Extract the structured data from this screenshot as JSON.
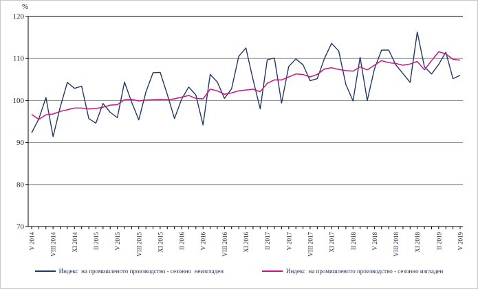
{
  "figure": {
    "y_unit_label": "%"
  },
  "chart_data": {
    "type": "line",
    "title": "",
    "xlabel": "",
    "ylabel": "%",
    "ylim": [
      70,
      120
    ],
    "yticks": [
      120,
      110,
      100,
      90,
      80,
      70
    ],
    "grid": "horizontal",
    "legend_position": "bottom",
    "months_total": 61,
    "tick_every": 3,
    "x_tick_labels": [
      "V 2014",
      "VIII 2014",
      "XI 2014",
      "II 2015",
      "V 2015",
      "VIII 2015",
      "XI 2015",
      "II 2016",
      "V 2016",
      "VIII 2016",
      "XI 2016",
      "II 2017",
      "V 2017",
      "VIII 2017",
      "XI 2017",
      "II 2018",
      "V 2018",
      "VIII 2018",
      "XI 2018",
      "II 2019",
      "V 2019"
    ],
    "series": [
      {
        "name": "Индекс  на промишленото производство - сезонно  неизгладен",
        "color": "#1f3864",
        "width": 1.4,
        "values": [
          92.3,
          95.6,
          100.7,
          91.4,
          98.4,
          104.3,
          102.9,
          103.4,
          95.7,
          94.6,
          99.3,
          97.2,
          95.9,
          104.4,
          99.6,
          95.4,
          102.0,
          106.6,
          106.7,
          101.4,
          95.7,
          100.3,
          103.2,
          101.3,
          94.2,
          106.2,
          104.4,
          100.5,
          102.8,
          110.5,
          112.5,
          105.0,
          98.0,
          109.7,
          110.1,
          99.4,
          108.1,
          109.9,
          108.5,
          104.7,
          105.2,
          110.0,
          113.6,
          111.8,
          103.8,
          99.9,
          110.3,
          100.0,
          107.5,
          112.0,
          112.0,
          108.5,
          106.4,
          104.3,
          116.3,
          108.0,
          106.3,
          108.6,
          111.5,
          105.2,
          106.0
        ]
      },
      {
        "name": "Индекс  на промишленото производство - сезонно изгладен",
        "color": "#cb1580",
        "width": 1.5,
        "values": [
          96.7,
          95.5,
          96.6,
          96.8,
          97.4,
          97.8,
          98.2,
          98.2,
          98.0,
          98.1,
          98.4,
          98.9,
          99.0,
          100.2,
          100.3,
          99.9,
          100.1,
          100.2,
          100.3,
          100.2,
          100.4,
          100.8,
          101.2,
          100.5,
          100.4,
          102.7,
          102.3,
          101.5,
          101.8,
          102.3,
          102.5,
          102.7,
          102.1,
          104.1,
          104.9,
          104.9,
          105.6,
          106.3,
          106.2,
          105.6,
          106.2,
          107.5,
          107.8,
          107.4,
          107.1,
          107.0,
          108.0,
          107.3,
          108.4,
          109.5,
          109.0,
          108.8,
          108.4,
          108.7,
          109.3,
          107.3,
          109.5,
          111.6,
          111.1,
          109.8,
          109.6
        ]
      }
    ]
  }
}
